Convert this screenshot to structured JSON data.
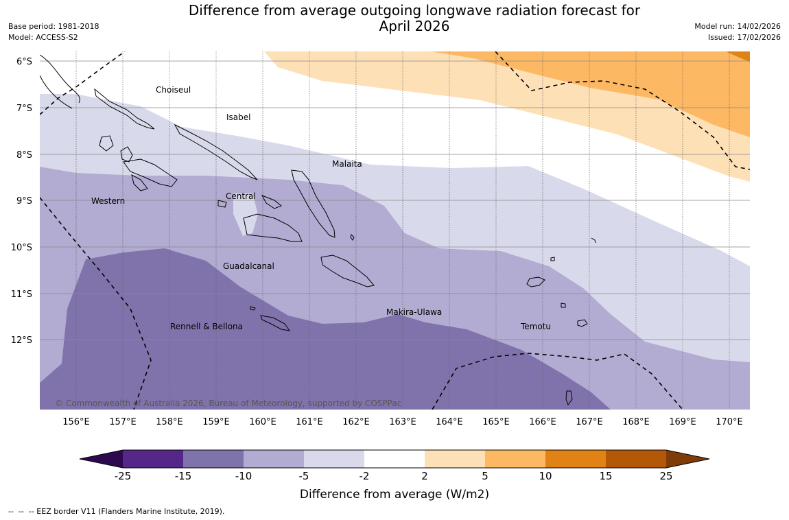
{
  "title_line1": "Difference from average outgoing longwave radiation forecast for",
  "title_line2": "April 2026",
  "base_period": "Base period: 1981-2018",
  "model": "Model: ACCESS-S2",
  "model_run": "Model run: 14/02/2026",
  "issued": "Issued: 17/02/2026",
  "lat_labels": [
    "6°S",
    "7°S",
    "8°S",
    "9°S",
    "10°S",
    "11°S",
    "12°S"
  ],
  "lon_labels": [
    "156°E",
    "157°E",
    "158°E",
    "159°E",
    "160°E",
    "161°E",
    "162°E",
    "163°E",
    "164°E",
    "165°E",
    "166°E",
    "167°E",
    "168°E",
    "169°E",
    "170°E"
  ],
  "provinces": [
    "Choiseul",
    "Isabel",
    "Malaita",
    "Western",
    "Central",
    "Guadalcanal",
    "Makira-Ulawa",
    "Rennell & Bellona",
    "Temotu"
  ],
  "copyright": "© Commonwealth of Australia 2026, Bureau of Meteorology, supported by COSPPac",
  "colorbar": {
    "ticks": [
      "-25",
      "-15",
      "-10",
      "-5",
      "-2",
      "2",
      "5",
      "10",
      "15",
      "25"
    ],
    "colors": [
      "#2d0a4e",
      "#542788",
      "#8073ac",
      "#b2abd2",
      "#d8daeb",
      "#ffffff",
      "#fee0b6",
      "#fdb863",
      "#e08214",
      "#b35806",
      "#7f3b08"
    ],
    "label": "Difference from average (W/m2)"
  },
  "legend_note": "--  --  -- EEZ border V11 (Flanders Marine Institute, 2019)."
}
